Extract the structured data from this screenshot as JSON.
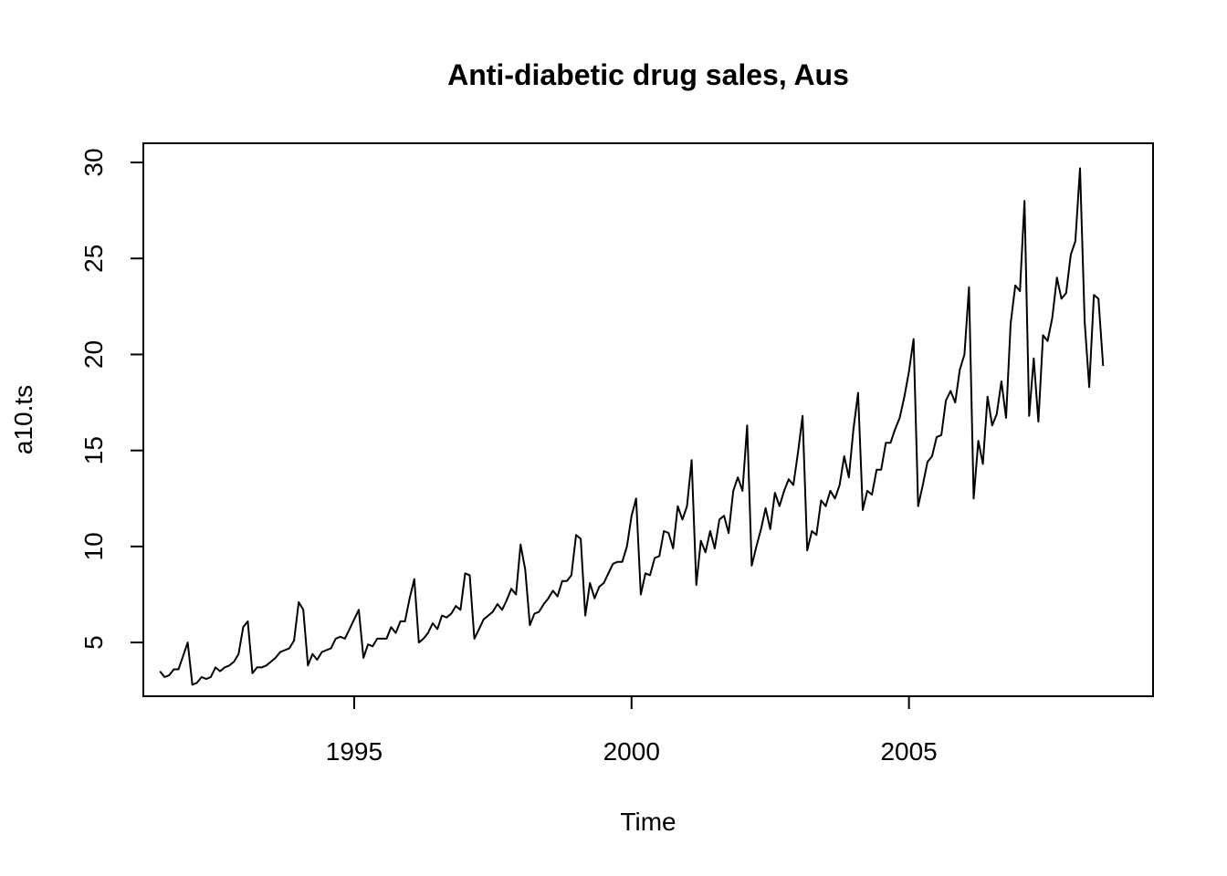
{
  "chart_data": {
    "type": "line",
    "title": "Anti-diabetic drug sales, Aus",
    "xlabel": "Time",
    "ylabel": "a10.ts",
    "xlim": [
      1991.2,
      2009.4
    ],
    "ylim": [
      2.2,
      31.0
    ],
    "x_ticks": [
      1995,
      2000,
      2005
    ],
    "x_tick_labels": [
      "1995",
      "2000",
      "2005"
    ],
    "y_ticks": [
      5,
      10,
      15,
      20,
      25,
      30
    ],
    "y_tick_labels": [
      "5",
      "10",
      "15",
      "20",
      "25",
      "30"
    ],
    "grid": false,
    "legend": "none",
    "line_color": "#000000",
    "series": [
      {
        "start": 1991.5,
        "frequency": 12,
        "values": [
          3.5,
          3.2,
          3.3,
          3.6,
          3.6,
          4.3,
          5.0,
          2.8,
          2.9,
          3.2,
          3.1,
          3.2,
          3.7,
          3.5,
          3.7,
          3.8,
          4.0,
          4.4,
          5.8,
          6.1,
          3.4,
          3.7,
          3.7,
          3.8,
          4.0,
          4.2,
          4.5,
          4.6,
          4.7,
          5.1,
          7.1,
          6.7,
          3.8,
          4.4,
          4.1,
          4.5,
          4.6,
          4.7,
          5.2,
          5.3,
          5.2,
          5.7,
          6.2,
          6.7,
          4.2,
          4.9,
          4.8,
          5.2,
          5.2,
          5.2,
          5.8,
          5.5,
          6.1,
          6.1,
          7.3,
          8.3,
          5.0,
          5.2,
          5.5,
          6.0,
          5.7,
          6.4,
          6.3,
          6.5,
          6.9,
          6.7,
          8.6,
          8.5,
          5.2,
          5.7,
          6.2,
          6.4,
          6.6,
          7.0,
          6.7,
          7.2,
          7.8,
          7.5,
          10.1,
          8.8,
          5.9,
          6.5,
          6.6,
          7.0,
          7.3,
          7.7,
          7.4,
          8.2,
          8.2,
          8.5,
          10.6,
          10.4,
          6.4,
          8.1,
          7.3,
          7.9,
          8.1,
          8.6,
          9.1,
          9.2,
          9.2,
          10.0,
          11.6,
          12.5,
          7.5,
          8.6,
          8.5,
          9.4,
          9.5,
          10.8,
          10.7,
          9.9,
          12.1,
          11.4,
          12.1,
          14.5,
          8.0,
          10.3,
          9.7,
          10.8,
          9.9,
          11.4,
          11.6,
          10.7,
          12.9,
          13.6,
          12.9,
          16.3,
          9.0,
          10.0,
          10.9,
          12.0,
          10.9,
          12.8,
          12.1,
          12.9,
          13.5,
          13.2,
          14.9,
          16.8,
          9.8,
          10.8,
          10.6,
          12.4,
          12.1,
          12.9,
          12.5,
          13.2,
          14.7,
          13.6,
          16.1,
          18.0,
          11.9,
          12.9,
          12.7,
          14.0,
          14.0,
          15.4,
          15.4,
          16.1,
          16.7,
          17.8,
          19.1,
          20.8,
          12.1,
          13.2,
          14.4,
          14.7,
          15.7,
          15.8,
          17.6,
          18.1,
          17.5,
          19.2,
          20.0,
          23.5,
          12.5,
          15.5,
          14.3,
          17.8,
          16.3,
          16.9,
          18.6,
          16.7,
          21.6,
          23.6,
          23.3,
          28.0,
          16.8,
          19.8,
          16.5,
          21.0,
          20.7,
          21.9,
          24.0,
          22.9,
          23.2,
          25.2,
          25.9,
          29.7,
          21.7,
          18.3,
          23.1,
          22.9,
          19.4
        ]
      }
    ]
  }
}
